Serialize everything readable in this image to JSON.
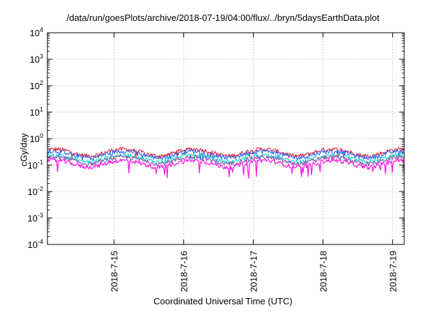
{
  "chart_data": {
    "type": "line",
    "title": "/data/run/goesPlots/archive/2018-07-19/04:00/flux/../bryn/5daysEarthData.plot",
    "xlabel": "Coordinated Universal Time (UTC)",
    "ylabel": "cGy/day",
    "yscale": "log",
    "ylim": [
      0.0001,
      10000
    ],
    "xlim": [
      "2018-07-14T01:00",
      "2018-07-19T04:00"
    ],
    "y_ticks": [
      {
        "base": "10",
        "exp": "-4"
      },
      {
        "base": "10",
        "exp": "-3"
      },
      {
        "base": "10",
        "exp": "-2"
      },
      {
        "base": "10",
        "exp": "-1"
      },
      {
        "base": "10",
        "exp": "0"
      },
      {
        "base": "10",
        "exp": "1"
      },
      {
        "base": "10",
        "exp": "2"
      },
      {
        "base": "10",
        "exp": "3"
      },
      {
        "base": "10",
        "exp": "4"
      }
    ],
    "x_ticks": [
      {
        "label": "2018-7-15",
        "date": "2018-07-15T00:00"
      },
      {
        "label": "2018-7-16",
        "date": "2018-07-16T00:00"
      },
      {
        "label": "2018-7-17",
        "date": "2018-07-17T00:00"
      },
      {
        "label": "2018-7-18",
        "date": "2018-07-18T00:00"
      },
      {
        "label": "2018-7-19",
        "date": "2018-07-19T00:00"
      }
    ],
    "grid": true,
    "series": [
      {
        "color": "#e8192c",
        "baseline": 0.4,
        "lowest": 0.18
      },
      {
        "color": "#1f66ff",
        "baseline": 0.34,
        "lowest": 0.15
      },
      {
        "color": "#18d8d0",
        "baseline": 0.24,
        "lowest": 0.13
      },
      {
        "color": "#8a4aa8",
        "baseline": 0.2,
        "lowest": 0.12
      },
      {
        "color": "#ff1ee8",
        "baseline": 0.15,
        "lowest": 0.03
      }
    ]
  }
}
